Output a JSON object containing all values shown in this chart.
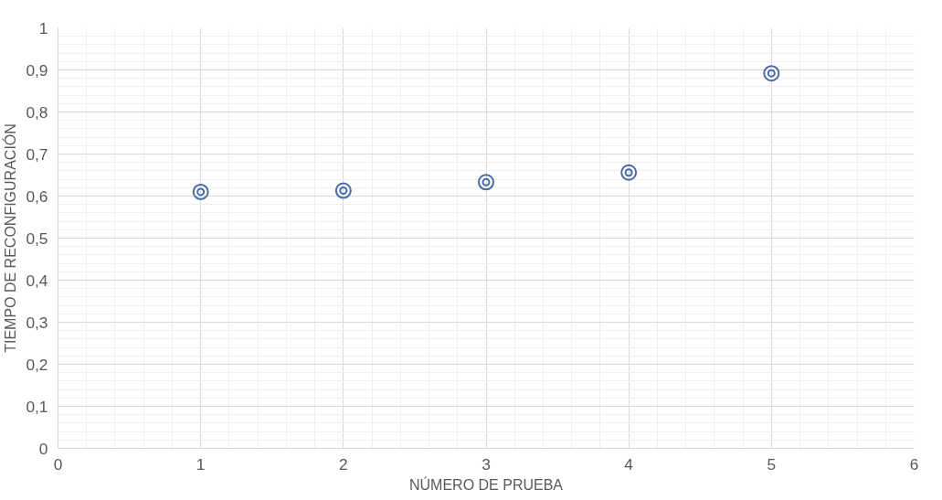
{
  "chart_data": {
    "type": "scatter",
    "xlabel": "NÚMERO DE PRUEBA",
    "ylabel": "TIEMPO DE RECONFIGURACIÓN",
    "x": [
      1,
      2,
      3,
      4,
      5
    ],
    "series": [
      {
        "color": "#4a6aa5",
        "values": [
          0.61,
          0.613,
          0.633,
          0.656,
          0.892
        ]
      }
    ],
    "xlim": [
      0,
      6
    ],
    "xticks": [
      0,
      1,
      2,
      3,
      4,
      5,
      6
    ],
    "ylim": [
      0,
      1
    ],
    "yticks": [
      {
        "value": 0,
        "label": "0"
      },
      {
        "value": 0.1,
        "label": "0,1"
      },
      {
        "value": 0.2,
        "label": "0,2"
      },
      {
        "value": 0.3,
        "label": "0,3"
      },
      {
        "value": 0.4,
        "label": "0,4"
      },
      {
        "value": 0.5,
        "label": "0,5"
      },
      {
        "value": 0.6,
        "label": "0,6"
      },
      {
        "value": 0.7,
        "label": "0,7"
      },
      {
        "value": 0.8,
        "label": "0,8"
      },
      {
        "value": 0.9,
        "label": "0,9"
      },
      {
        "value": 1,
        "label": "1"
      }
    ],
    "grid": true,
    "marker": "circle"
  }
}
